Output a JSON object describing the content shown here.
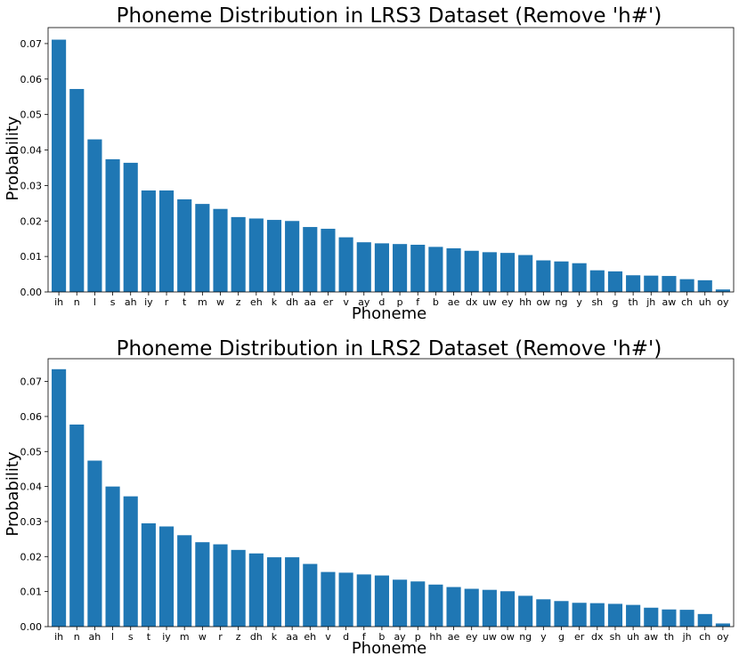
{
  "chart_data": [
    {
      "type": "bar",
      "title": "Phoneme Distribution in LRS3 Dataset (Remove 'h#')",
      "xlabel": "Phoneme",
      "ylabel": "Probability",
      "ylim": [
        0,
        0.0745
      ],
      "yticks": [
        "0.00",
        "0.01",
        "0.02",
        "0.03",
        "0.04",
        "0.05",
        "0.06",
        "0.07"
      ],
      "categories": [
        "ih",
        "n",
        "l",
        "s",
        "ah",
        "iy",
        "r",
        "t",
        "m",
        "w",
        "z",
        "eh",
        "k",
        "dh",
        "aa",
        "er",
        "v",
        "ay",
        "d",
        "p",
        "f",
        "b",
        "ae",
        "dx",
        "uw",
        "ey",
        "hh",
        "ow",
        "ng",
        "y",
        "sh",
        "g",
        "th",
        "jh",
        "aw",
        "ch",
        "uh",
        "oy"
      ],
      "values": [
        0.0711,
        0.0572,
        0.043,
        0.0374,
        0.0364,
        0.0286,
        0.0286,
        0.0261,
        0.0248,
        0.0234,
        0.0211,
        0.0207,
        0.0203,
        0.02,
        0.0183,
        0.0178,
        0.0154,
        0.014,
        0.0137,
        0.0135,
        0.0133,
        0.0127,
        0.0123,
        0.0116,
        0.0112,
        0.011,
        0.0104,
        0.0089,
        0.0086,
        0.0081,
        0.0061,
        0.0058,
        0.0047,
        0.0046,
        0.0045,
        0.0036,
        0.0033,
        0.0007
      ],
      "color": "#1f77b4"
    },
    {
      "type": "bar",
      "title": "Phoneme Distribution in LRS2 Dataset (Remove 'h#')",
      "xlabel": "Phoneme",
      "ylabel": "Probability",
      "ylim": [
        0,
        0.0765
      ],
      "yticks": [
        "0.00",
        "0.01",
        "0.02",
        "0.03",
        "0.04",
        "0.05",
        "0.06",
        "0.07"
      ],
      "categories": [
        "ih",
        "n",
        "ah",
        "l",
        "s",
        "t",
        "iy",
        "m",
        "w",
        "r",
        "z",
        "dh",
        "k",
        "aa",
        "eh",
        "v",
        "d",
        "f",
        "b",
        "ay",
        "p",
        "hh",
        "ae",
        "ey",
        "uw",
        "ow",
        "ng",
        "y",
        "g",
        "er",
        "dx",
        "sh",
        "uh",
        "aw",
        "th",
        "jh",
        "ch",
        "oy"
      ],
      "values": [
        0.0735,
        0.0577,
        0.0474,
        0.04,
        0.0372,
        0.0295,
        0.0286,
        0.0261,
        0.0241,
        0.0235,
        0.0219,
        0.0209,
        0.0198,
        0.0198,
        0.0179,
        0.0156,
        0.0154,
        0.0149,
        0.0146,
        0.0134,
        0.0129,
        0.012,
        0.0113,
        0.0108,
        0.0105,
        0.0101,
        0.0088,
        0.0078,
        0.0073,
        0.0068,
        0.0067,
        0.0065,
        0.0062,
        0.0054,
        0.0049,
        0.0048,
        0.0036,
        0.0009
      ],
      "color": "#1f77b4"
    }
  ]
}
